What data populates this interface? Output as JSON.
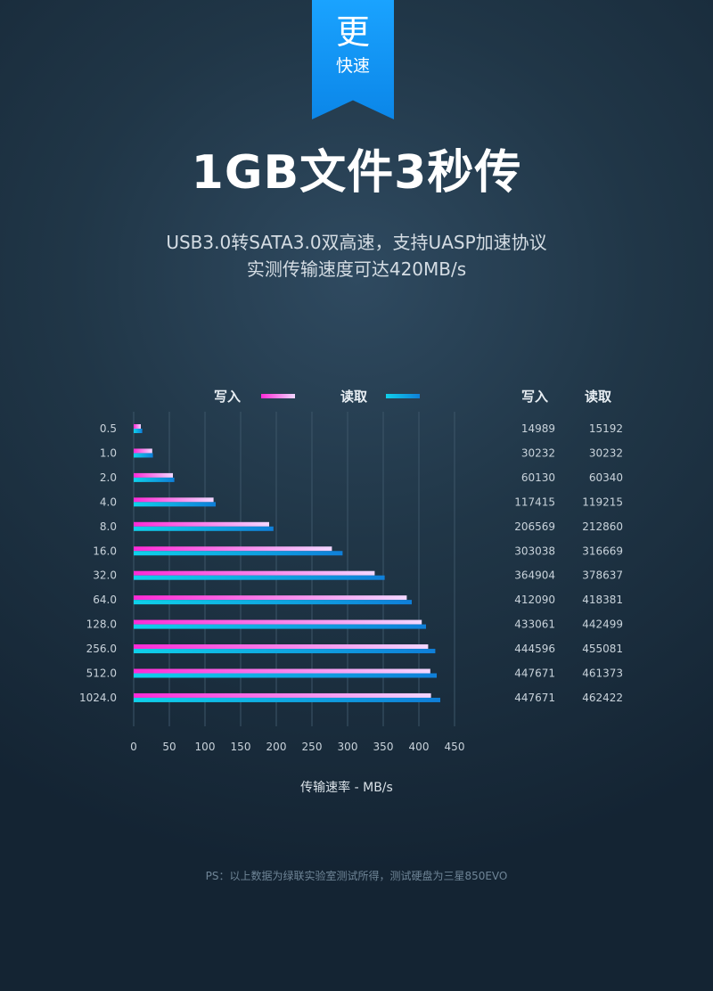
{
  "badge": {
    "big": "更",
    "small": "快速"
  },
  "headline": "1GB文件3秒传",
  "subtitle_line1": "USB3.0转SATA3.0双高速，支持UASP加速协议",
  "subtitle_line2": "实测传输速度可达420MB/s",
  "footnote": "PS：以上数据为绿联实验室测试所得，测试硬盘为三星850EVO",
  "colors": {
    "write": "#ff3cd7",
    "read": "#11c9e8",
    "ribbon": "#0b8fef"
  },
  "chart_data": {
    "type": "bar",
    "orientation": "horizontal",
    "categories": [
      "0.5",
      "1.0",
      "2.0",
      "4.0",
      "8.0",
      "16.0",
      "32.0",
      "64.0",
      "128.0",
      "256.0",
      "512.0",
      "1024.0"
    ],
    "series": [
      {
        "name": "写入",
        "color": "#ff3cd7",
        "values": [
          10,
          26,
          55,
          112,
          190,
          278,
          338,
          383,
          404,
          413,
          416,
          417
        ]
      },
      {
        "name": "读取",
        "color": "#11c9e8",
        "values": [
          12,
          27,
          57,
          115,
          196,
          293,
          352,
          390,
          410,
          423,
          425,
          430
        ]
      }
    ],
    "table": {
      "headers": [
        "写入",
        "读取"
      ],
      "write": [
        "14989",
        "30232",
        "60130",
        "117415",
        "206569",
        "303038",
        "364904",
        "412090",
        "433061",
        "444596",
        "447671",
        "447671"
      ],
      "read": [
        "15192",
        "30232",
        "60340",
        "119215",
        "212860",
        "316669",
        "378637",
        "418381",
        "442499",
        "455081",
        "461373",
        "462422"
      ]
    },
    "xticks": [
      "0",
      "50",
      "100",
      "150",
      "200",
      "250",
      "300",
      "350",
      "400",
      "450"
    ],
    "xlim": [
      0,
      450
    ],
    "xlabel": "传输速率 - MB/s",
    "ylabel": "",
    "legend": [
      "写入",
      "读取"
    ],
    "legend_position": "top",
    "grid": true
  }
}
